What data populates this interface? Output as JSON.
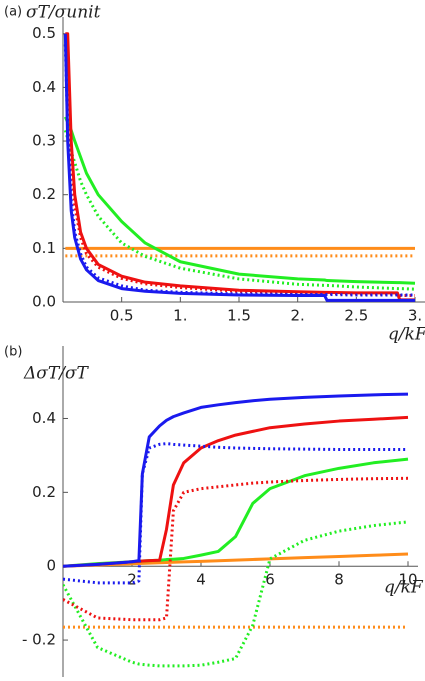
{
  "chart_data": [
    {
      "type": "line",
      "panel_label": "(a)",
      "ylabel": "σT/σunit",
      "xlabel": "q/kF",
      "xlim": [
        0,
        3
      ],
      "ylim": [
        0,
        0.52
      ],
      "xticks": [
        0.5,
        {
          "value": 1,
          "label": "1."
        },
        1.5,
        {
          "value": 2,
          "label": "2."
        },
        2.5,
        {
          "value": 3,
          "label": "3."
        }
      ],
      "yticks": [
        {
          "value": 0,
          "label": "0.0"
        },
        0.1,
        0.2,
        0.3,
        0.4,
        0.5
      ],
      "x": [
        0.02,
        0.04,
        0.07,
        0.1,
        0.15,
        0.2,
        0.3,
        0.5,
        0.7,
        1.0,
        1.5,
        2.0,
        2.23,
        2.25,
        2.5,
        2.85,
        2.87,
        3.0
      ],
      "series": [
        {
          "color": "#ff8c1a",
          "style": "solid",
          "values": [
            0.1,
            0.1,
            0.1,
            0.1,
            0.1,
            0.1,
            0.1,
            0.1,
            0.1,
            0.1,
            0.1,
            0.1,
            0.1,
            0.1,
            0.1,
            0.1,
            0.1,
            0.1
          ]
        },
        {
          "color": "#ff8c1a",
          "style": "dotted",
          "values": [
            0.086,
            0.086,
            0.086,
            0.086,
            0.086,
            0.086,
            0.086,
            0.086,
            0.086,
            0.086,
            0.086,
            0.086,
            0.086,
            0.086,
            0.086,
            0.086,
            0.086,
            0.086
          ]
        },
        {
          "color": "#22ee22",
          "style": "dotted",
          "values": [
            0.32,
            0.305,
            0.28,
            0.26,
            0.225,
            0.2,
            0.16,
            0.11,
            0.085,
            0.063,
            0.043,
            0.033,
            0.031,
            0.031,
            0.028,
            0.025,
            0.025,
            0.024
          ]
        },
        {
          "color": "#22ee22",
          "style": "solid",
          "values": [
            0.345,
            0.335,
            0.32,
            0.3,
            0.27,
            0.24,
            0.2,
            0.15,
            0.11,
            0.075,
            0.052,
            0.043,
            0.041,
            0.04,
            0.038,
            0.036,
            0.036,
            0.035
          ]
        },
        {
          "color": "#ee1111",
          "style": "dotted",
          "values": [
            0.5,
            0.45,
            0.27,
            0.18,
            0.12,
            0.09,
            0.065,
            0.044,
            0.034,
            0.027,
            0.02,
            0.017,
            0.016,
            0.016,
            0.015,
            0.015,
            0.012,
            0.012
          ]
        },
        {
          "color": "#ee1111",
          "style": "solid",
          "values": [
            0.5,
            0.5,
            0.3,
            0.2,
            0.13,
            0.1,
            0.07,
            0.048,
            0.037,
            0.03,
            0.022,
            0.019,
            0.018,
            0.018,
            0.017,
            0.017,
            0.004,
            0.004
          ]
        },
        {
          "color": "#1a1aee",
          "style": "dotted",
          "values": [
            0.48,
            0.32,
            0.19,
            0.13,
            0.09,
            0.065,
            0.045,
            0.03,
            0.022,
            0.018,
            0.015,
            0.014,
            0.014,
            0.014,
            0.013,
            0.013,
            0.013,
            0.013
          ]
        },
        {
          "color": "#1a1aee",
          "style": "solid",
          "values": [
            0.5,
            0.3,
            0.17,
            0.12,
            0.08,
            0.06,
            0.04,
            0.025,
            0.02,
            0.016,
            0.013,
            0.012,
            0.012,
            0.003,
            0.003,
            0.003,
            0.003,
            0.003
          ]
        }
      ]
    },
    {
      "type": "line",
      "panel_label": "(b)",
      "ylabel": "ΔσT/σT",
      "xlabel": "q/kF",
      "xlim": [
        0,
        10
      ],
      "ylim": [
        -0.3,
        0.58
      ],
      "xticks": [
        2,
        4,
        6,
        8,
        10
      ],
      "yticks": [
        {
          "value": -0.2,
          "label": "- 0.2"
        },
        0,
        0.2,
        0.4
      ],
      "x": [
        0,
        1,
        2,
        2.2,
        2.3,
        2.5,
        2.8,
        3.0,
        3.2,
        3.5,
        4,
        4.5,
        5,
        5.5,
        6,
        7,
        8,
        9,
        10
      ],
      "series": [
        {
          "color": "#ff8c1a",
          "style": "dotted",
          "values": [
            -0.165,
            -0.165,
            -0.165,
            -0.165,
            -0.165,
            -0.165,
            -0.165,
            -0.165,
            -0.165,
            -0.165,
            -0.165,
            -0.165,
            -0.165,
            -0.165,
            -0.165,
            -0.165,
            -0.165,
            -0.165,
            -0.165
          ]
        },
        {
          "color": "#ff8c1a",
          "style": "solid",
          "values": [
            0,
            0.0033,
            0.0066,
            0.0073,
            0.0076,
            0.0083,
            0.0092,
            0.0099,
            0.0106,
            0.0116,
            0.0132,
            0.0149,
            0.0165,
            0.0182,
            0.0198,
            0.0231,
            0.0264,
            0.0297,
            0.033
          ]
        },
        {
          "color": "#22ee22",
          "style": "dotted",
          "values": [
            -0.05,
            -0.22,
            -0.26,
            -0.265,
            -0.266,
            -0.268,
            -0.27,
            -0.27,
            -0.27,
            -0.27,
            -0.268,
            -0.26,
            -0.25,
            -0.16,
            0.02,
            0.07,
            0.095,
            0.11,
            0.12
          ]
        },
        {
          "color": "#22ee22",
          "style": "solid",
          "values": [
            0,
            0.007,
            0.012,
            0.013,
            0.014,
            0.015,
            0.016,
            0.018,
            0.019,
            0.021,
            0.03,
            0.04,
            0.08,
            0.17,
            0.21,
            0.245,
            0.265,
            0.28,
            0.29
          ]
        },
        {
          "color": "#ee1111",
          "style": "dotted",
          "values": [
            -0.09,
            -0.14,
            -0.145,
            -0.145,
            -0.145,
            -0.145,
            -0.145,
            -0.14,
            0.15,
            0.2,
            0.21,
            0.215,
            0.22,
            0.225,
            0.228,
            0.232,
            0.235,
            0.237,
            0.238
          ]
        },
        {
          "color": "#ee1111",
          "style": "solid",
          "values": [
            0,
            0.005,
            0.012,
            0.013,
            0.014,
            0.015,
            0.016,
            0.1,
            0.22,
            0.28,
            0.32,
            0.34,
            0.355,
            0.365,
            0.375,
            0.385,
            0.393,
            0.398,
            0.403
          ]
        },
        {
          "color": "#1a1aee",
          "style": "dotted",
          "values": [
            -0.035,
            -0.045,
            -0.045,
            -0.04,
            0.25,
            0.32,
            0.33,
            0.332,
            0.33,
            0.328,
            0.325,
            0.322,
            0.32,
            0.319,
            0.318,
            0.317,
            0.316,
            0.316,
            0.316
          ]
        },
        {
          "color": "#1a1aee",
          "style": "solid",
          "values": [
            0,
            0.005,
            0.012,
            0.015,
            0.25,
            0.35,
            0.38,
            0.395,
            0.405,
            0.415,
            0.43,
            0.437,
            0.443,
            0.448,
            0.452,
            0.457,
            0.461,
            0.464,
            0.466
          ]
        }
      ]
    }
  ]
}
